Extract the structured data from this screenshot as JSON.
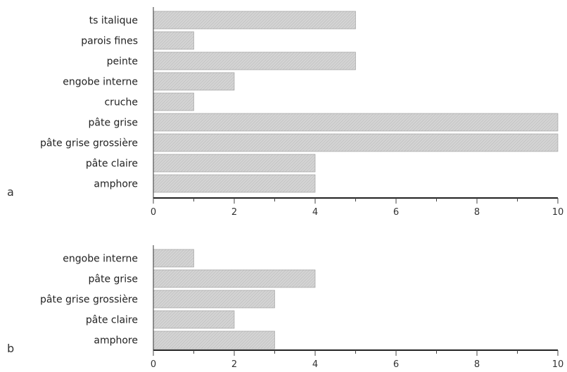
{
  "chart_data": [
    {
      "type": "bar",
      "orientation": "horizontal",
      "panel_label": "a",
      "categories": [
        "ts italique",
        "parois fines",
        "peinte",
        "engobe interne",
        "cruche",
        "pâte grise",
        "pâte grise grossière",
        "pâte claire",
        "amphore"
      ],
      "values": [
        5,
        1,
        5,
        2,
        1,
        10,
        10,
        4,
        4
      ],
      "xlim": [
        0,
        10
      ],
      "xticks": [
        "0",
        "2",
        "4",
        "6",
        "8",
        "10"
      ],
      "grid": false,
      "bar_color": "#d0d0d0"
    },
    {
      "type": "bar",
      "orientation": "horizontal",
      "panel_label": "b",
      "categories": [
        "engobe interne",
        "pâte grise",
        "pâte grise grossière",
        "pâte claire",
        "amphore"
      ],
      "values": [
        1,
        4,
        3,
        2,
        3
      ],
      "xlim": [
        0,
        10
      ],
      "xticks": [
        "0",
        "2",
        "4",
        "6",
        "8",
        "10"
      ],
      "grid": false,
      "bar_color": "#d0d0d0"
    }
  ]
}
